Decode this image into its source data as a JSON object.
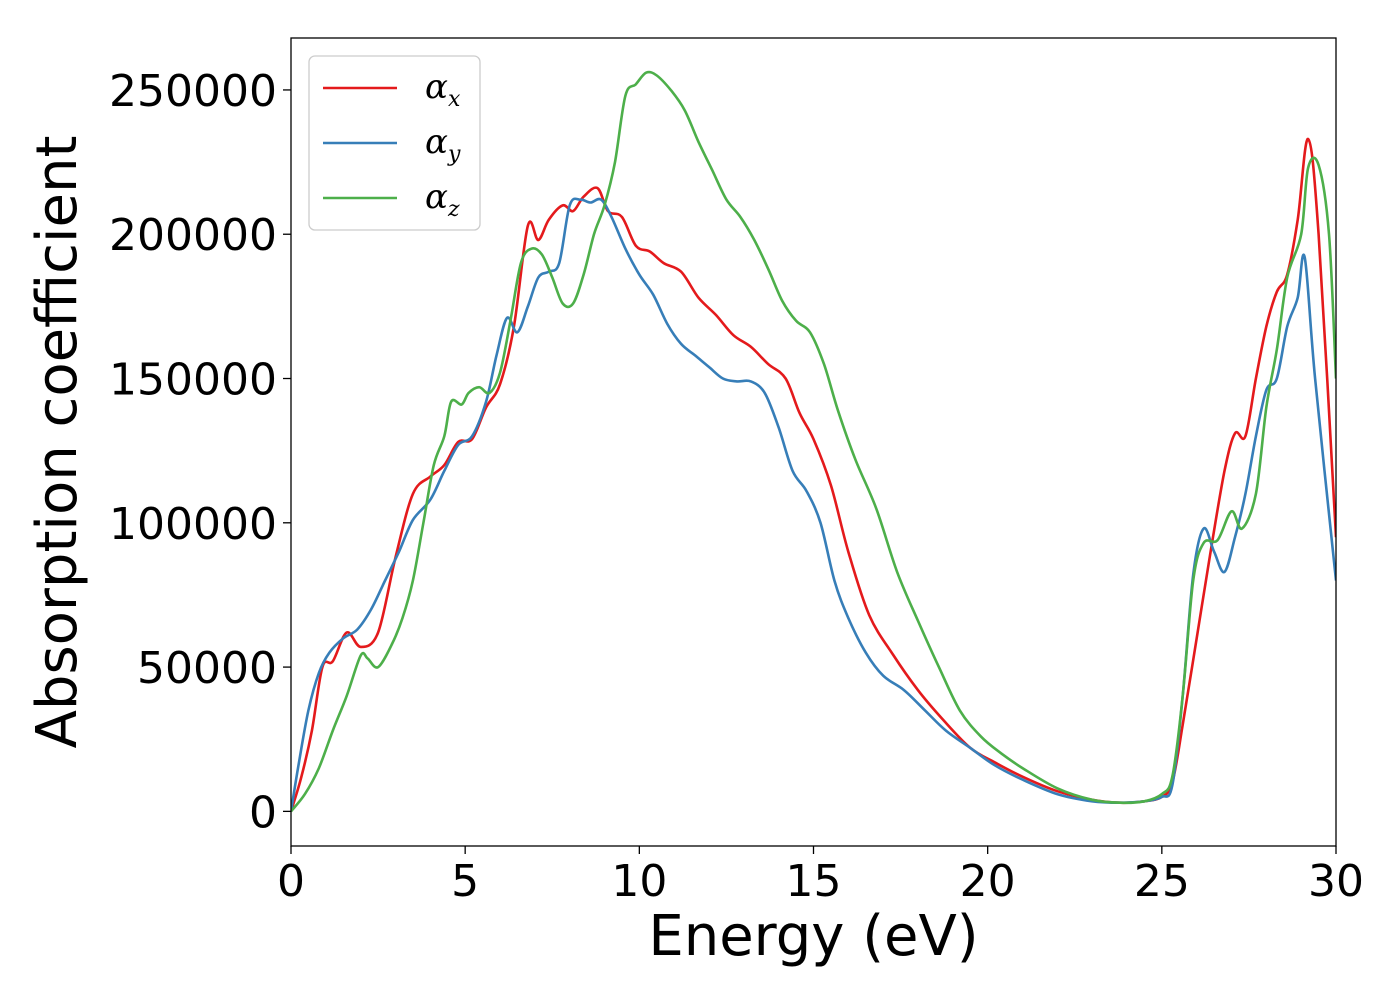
{
  "chart_data": {
    "type": "line",
    "xlabel": "Energy (eV)",
    "ylabel": "Absorption coefficient",
    "xlim": [
      0,
      30
    ],
    "ylim": [
      -12000,
      268000
    ],
    "xticks": [
      0,
      5,
      10,
      15,
      20,
      25,
      30
    ],
    "xtick_labels": [
      "0",
      "5",
      "10",
      "15",
      "20",
      "25",
      "30"
    ],
    "yticks": [
      0,
      50000,
      100000,
      150000,
      200000,
      250000
    ],
    "ytick_labels": [
      "0",
      "50000",
      "100000",
      "150000",
      "200000",
      "250000"
    ],
    "grid": false,
    "legend_position": "top-left",
    "series": [
      {
        "name": "α_x",
        "legend_symbol": "α",
        "legend_subscript": "x",
        "color": "#e41a1c",
        "x": [
          0,
          0.3,
          0.6,
          0.9,
          1.2,
          1.6,
          2.0,
          2.5,
          3.0,
          3.5,
          4.0,
          4.4,
          4.8,
          5.2,
          5.6,
          6.0,
          6.4,
          6.8,
          7.1,
          7.4,
          7.8,
          8.1,
          8.4,
          8.8,
          9.1,
          9.5,
          9.9,
          10.3,
          10.7,
          11.2,
          11.7,
          12.2,
          12.7,
          13.2,
          13.7,
          14.2,
          14.6,
          15.0,
          15.5,
          16.0,
          16.6,
          17.3,
          18.0,
          18.7,
          19.5,
          20.2,
          21.0,
          22.0,
          23.0,
          23.8,
          24.5,
          25.0,
          25.3,
          25.6,
          26.0,
          26.4,
          26.8,
          27.1,
          27.4,
          27.7,
          28.0,
          28.3,
          28.6,
          28.9,
          29.2,
          29.5,
          30.0
        ],
        "y": [
          0,
          12000,
          28000,
          50000,
          52000,
          62000,
          57000,
          62000,
          88000,
          110000,
          116000,
          120000,
          128000,
          129000,
          140000,
          148000,
          168000,
          203000,
          198000,
          205000,
          210000,
          208000,
          213000,
          216000,
          208000,
          206000,
          196000,
          194000,
          190000,
          187000,
          178000,
          172000,
          165000,
          161000,
          155000,
          150000,
          138000,
          129000,
          113000,
          90000,
          68000,
          54000,
          42000,
          32000,
          22000,
          17000,
          12000,
          7000,
          4000,
          3000,
          3500,
          5000,
          10000,
          30000,
          60000,
          90000,
          118000,
          131000,
          130000,
          150000,
          168000,
          180000,
          186000,
          205000,
          233000,
          200000,
          95000
        ]
      },
      {
        "name": "α_y",
        "legend_symbol": "α",
        "legend_subscript": "y",
        "color": "#377eb8",
        "x": [
          0,
          0.2,
          0.5,
          0.8,
          1.1,
          1.5,
          1.9,
          2.3,
          2.7,
          3.1,
          3.5,
          4.0,
          4.4,
          4.8,
          5.2,
          5.6,
          5.9,
          6.2,
          6.5,
          6.8,
          7.1,
          7.4,
          7.7,
          8.0,
          8.3,
          8.6,
          8.9,
          9.2,
          9.6,
          10.0,
          10.4,
          10.8,
          11.2,
          11.6,
          12.0,
          12.4,
          12.8,
          13.2,
          13.6,
          14.0,
          14.4,
          14.8,
          15.2,
          15.6,
          16.0,
          16.5,
          17.0,
          17.6,
          18.2,
          18.8,
          19.5,
          20.2,
          21.0,
          22.0,
          23.0,
          23.8,
          24.5,
          25.0,
          25.3,
          25.6,
          25.9,
          26.2,
          26.5,
          26.8,
          27.1,
          27.4,
          27.7,
          28.0,
          28.3,
          28.6,
          28.9,
          29.1,
          29.4,
          30.0
        ],
        "y": [
          0,
          15000,
          35000,
          48000,
          55000,
          60000,
          63000,
          70000,
          80000,
          90000,
          101000,
          108000,
          118000,
          127000,
          130000,
          142000,
          158000,
          171000,
          166000,
          175000,
          185000,
          187000,
          190000,
          210000,
          212000,
          211000,
          212000,
          206000,
          195000,
          186000,
          179000,
          169000,
          162000,
          158000,
          154000,
          150000,
          149000,
          149000,
          145000,
          133000,
          118000,
          111000,
          100000,
          80000,
          67000,
          55000,
          47000,
          42000,
          35000,
          28000,
          22000,
          16000,
          11000,
          6000,
          3500,
          3000,
          3500,
          5000,
          9000,
          40000,
          82000,
          98000,
          90000,
          83000,
          95000,
          110000,
          130000,
          146000,
          150000,
          168000,
          178000,
          192000,
          150000,
          80000
        ]
      },
      {
        "name": "α_z",
        "legend_symbol": "α",
        "legend_subscript": "z",
        "color": "#4daf4a",
        "x": [
          0,
          0.4,
          0.8,
          1.2,
          1.6,
          2.0,
          2.2,
          2.5,
          2.9,
          3.2,
          3.5,
          3.8,
          4.1,
          4.4,
          4.6,
          4.9,
          5.1,
          5.4,
          5.7,
          6.0,
          6.3,
          6.6,
          6.9,
          7.2,
          7.5,
          7.8,
          8.1,
          8.4,
          8.7,
          9.0,
          9.3,
          9.6,
          9.9,
          10.2,
          10.5,
          10.9,
          11.3,
          11.7,
          12.1,
          12.5,
          12.9,
          13.3,
          13.7,
          14.1,
          14.5,
          14.9,
          15.3,
          15.7,
          16.2,
          16.8,
          17.4,
          18.0,
          18.6,
          19.2,
          19.8,
          20.4,
          21.0,
          22.0,
          23.0,
          23.8,
          24.5,
          25.0,
          25.3,
          25.6,
          25.9,
          26.2,
          26.6,
          27.0,
          27.3,
          27.7,
          28.0,
          28.3,
          28.6,
          29.0,
          29.2,
          29.5,
          29.8,
          30.0
        ],
        "y": [
          0,
          6000,
          15000,
          28000,
          40000,
          54000,
          53000,
          50000,
          58000,
          67000,
          80000,
          100000,
          120000,
          130000,
          142000,
          141000,
          145000,
          147000,
          145000,
          152000,
          170000,
          190000,
          195000,
          193000,
          185000,
          176000,
          176000,
          186000,
          200000,
          210000,
          225000,
          248000,
          252000,
          256000,
          255000,
          250000,
          243000,
          232000,
          222000,
          212000,
          206000,
          198000,
          188000,
          177000,
          170000,
          166000,
          155000,
          139000,
          122000,
          105000,
          83000,
          66000,
          50000,
          35000,
          26000,
          20000,
          15000,
          8000,
          4000,
          3000,
          3500,
          6000,
          12000,
          40000,
          80000,
          93000,
          94000,
          104000,
          98000,
          110000,
          140000,
          160000,
          185000,
          200000,
          223000,
          224000,
          200000,
          150000
        ]
      }
    ]
  }
}
